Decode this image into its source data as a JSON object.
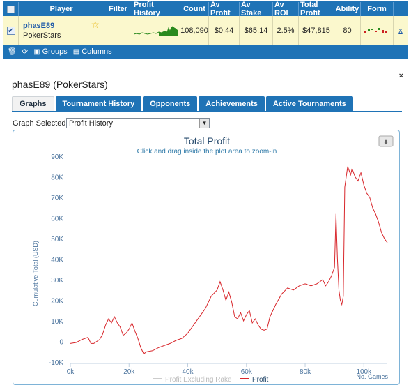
{
  "grid": {
    "headers": {
      "player": "Player",
      "filter": "Filter",
      "profit_history": "Profit History",
      "count": "Count",
      "av_profit": "Av Profit",
      "av_stake": "Av Stake",
      "av_roi": "Av ROI",
      "total_profit": "Total Profit",
      "ability": "Ability",
      "form": "Form"
    },
    "row": {
      "checked": true,
      "player_name": "phasE89",
      "network": "PokerStars",
      "count": "108,090",
      "av_profit": "$0.44",
      "av_stake": "$65.14",
      "av_roi": "2.5%",
      "total_profit": "$47,815",
      "ability": "80",
      "remove": "x"
    },
    "footer": {
      "groups_label": "Groups",
      "columns_label": "Columns"
    },
    "colors": {
      "header_bg": "#1f73b6",
      "row_bg": "#fbf8cd",
      "sparkline": "#2a8a1e"
    }
  },
  "panel": {
    "title": "phasE89 (PokerStars)",
    "close": "×",
    "tabs": [
      {
        "label": "Graphs",
        "active": true
      },
      {
        "label": "Tournament History",
        "active": false
      },
      {
        "label": "Opponents",
        "active": false
      },
      {
        "label": "Achievements",
        "active": false
      },
      {
        "label": "Active Tournaments",
        "active": false
      }
    ],
    "graph_selected_label": "Graph Selected:",
    "graph_selected_value": "Profit History"
  },
  "chart_data": {
    "type": "line",
    "title": "Total Profit",
    "subtitle": "Click and drag inside the plot area to zoom-in",
    "xlabel": "No. Games",
    "ylabel": "Cumulative Total (USD)",
    "xlim": [
      0,
      108000
    ],
    "ylim": [
      -10000,
      90000
    ],
    "x_ticks": [
      "0k",
      "20k",
      "40k",
      "60k",
      "80k",
      "100k"
    ],
    "y_ticks": [
      "-10K",
      "0",
      "10K",
      "20K",
      "30K",
      "40K",
      "50K",
      "60K",
      "70K",
      "80K",
      "90K"
    ],
    "grid": false,
    "legend": "bottom-center",
    "series": [
      {
        "name": "Profit Excluding Rake",
        "color": "#cccccc",
        "values": []
      },
      {
        "name": "Profit",
        "color": "#d8262b",
        "x": [
          0,
          2000,
          4000,
          6000,
          7000,
          8000,
          10000,
          11000,
          12000,
          13000,
          14000,
          15000,
          16000,
          17000,
          18000,
          19000,
          20000,
          21000,
          22000,
          23000,
          24000,
          25000,
          26000,
          28000,
          30000,
          32000,
          34000,
          36000,
          38000,
          40000,
          42000,
          44000,
          46000,
          48000,
          50000,
          51000,
          52000,
          53000,
          54000,
          55000,
          56000,
          57000,
          58000,
          59000,
          60000,
          61000,
          62000,
          63000,
          64000,
          65000,
          66000,
          67000,
          68000,
          70000,
          72000,
          74000,
          76000,
          78000,
          80000,
          82000,
          84000,
          86000,
          87000,
          88000,
          89000,
          90000,
          90500,
          91000,
          91500,
          92000,
          92500,
          93000,
          93500,
          94000,
          94500,
          95000,
          95500,
          96000,
          97000,
          98000,
          99000,
          100000,
          101000,
          102000,
          103000,
          104000,
          105000,
          106000,
          107000,
          108000
        ],
        "values": [
          -1000,
          -500,
          1000,
          2000,
          -1000,
          -1000,
          1000,
          3500,
          8000,
          11000,
          9000,
          12000,
          9000,
          7000,
          3000,
          4000,
          6000,
          9000,
          5000,
          1500,
          -3000,
          -6000,
          -5000,
          -4500,
          -3000,
          -2000,
          -1000,
          500,
          1500,
          4000,
          8000,
          12000,
          16000,
          22000,
          25000,
          29000,
          25000,
          20000,
          24000,
          19000,
          12000,
          11000,
          14000,
          10000,
          13000,
          15000,
          9000,
          11000,
          8000,
          6000,
          5500,
          6000,
          12000,
          18000,
          23000,
          26000,
          25000,
          27000,
          28000,
          27000,
          28000,
          30000,
          27000,
          29000,
          32000,
          36000,
          62000,
          40000,
          25000,
          20000,
          18000,
          22000,
          75000,
          80000,
          85000,
          83000,
          81000,
          84000,
          80000,
          78000,
          82000,
          76000,
          72000,
          70000,
          65000,
          62000,
          58000,
          53000,
          50000,
          48000
        ]
      }
    ]
  }
}
